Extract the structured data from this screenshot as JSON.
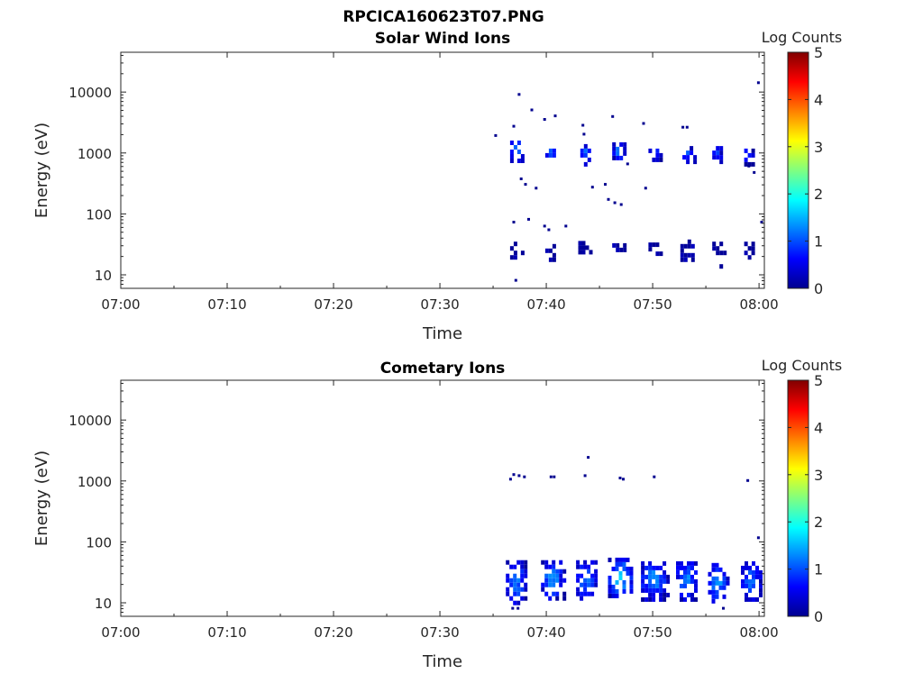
{
  "figure_title": "RPCICA160623T07.PNG",
  "colormap": [
    "#00008f",
    "#0000ff",
    "#0080ff",
    "#00ffff",
    "#80ff80",
    "#ffff00",
    "#ff8000",
    "#ff0000",
    "#800000"
  ],
  "chart_data": [
    {
      "type": "heatmap",
      "title": "Solar Wind Ions",
      "xlabel": "Time",
      "ylabel": "Energy (eV)",
      "xlim_minutes": [
        0,
        60.5
      ],
      "ylim": [
        6,
        45000
      ],
      "yscale": "log",
      "xticks": [
        {
          "m": 0,
          "label": "07:00"
        },
        {
          "m": 10,
          "label": "07:10"
        },
        {
          "m": 20,
          "label": "07:20"
        },
        {
          "m": 30,
          "label": "07:30"
        },
        {
          "m": 40,
          "label": "07:40"
        },
        {
          "m": 50,
          "label": "07:50"
        },
        {
          "m": 60,
          "label": "08:00"
        }
      ],
      "yticks": [
        {
          "v": 10,
          "label": "10"
        },
        {
          "v": 100,
          "label": "100"
        },
        {
          "v": 1000,
          "label": "1000"
        },
        {
          "v": 10000,
          "label": "10000"
        }
      ],
      "colorbar": {
        "label": "Log Counts",
        "min": 0,
        "max": 5,
        "ticks": [
          "0",
          "1",
          "2",
          "3",
          "4",
          "5"
        ]
      },
      "blobs": [
        {
          "t0": 36.6,
          "t1": 37.9,
          "e0": 700,
          "e1": 1600,
          "val": 1.5
        },
        {
          "t0": 39.9,
          "t1": 40.9,
          "e0": 750,
          "e1": 1400,
          "val": 1.3
        },
        {
          "t0": 43.2,
          "t1": 44.2,
          "e0": 700,
          "e1": 1400,
          "val": 1.2
        },
        {
          "t0": 46.2,
          "t1": 47.5,
          "e0": 750,
          "e1": 1500,
          "val": 1.3
        },
        {
          "t0": 49.6,
          "t1": 50.7,
          "e0": 750,
          "e1": 1400,
          "val": 1.2
        },
        {
          "t0": 52.8,
          "t1": 54.0,
          "e0": 700,
          "e1": 1300,
          "val": 1.0
        },
        {
          "t0": 55.6,
          "t1": 56.6,
          "e0": 700,
          "e1": 1300,
          "val": 0.9
        },
        {
          "t0": 58.6,
          "t1": 59.4,
          "e0": 700,
          "e1": 1400,
          "val": 1.1
        },
        {
          "t0": 36.6,
          "t1": 37.7,
          "e0": 19,
          "e1": 35,
          "val": 0.1
        },
        {
          "t0": 39.9,
          "t1": 40.7,
          "e0": 19,
          "e1": 32,
          "val": 0.1
        },
        {
          "t0": 43.0,
          "t1": 44.2,
          "e0": 22,
          "e1": 36,
          "val": 0.1
        },
        {
          "t0": 46.2,
          "t1": 47.4,
          "e0": 20,
          "e1": 33,
          "val": 0.1
        },
        {
          "t0": 49.6,
          "t1": 50.9,
          "e0": 20,
          "e1": 34,
          "val": 0.1
        },
        {
          "t0": 52.6,
          "t1": 53.9,
          "e0": 19,
          "e1": 38,
          "val": 0.1
        },
        {
          "t0": 55.6,
          "t1": 56.7,
          "e0": 14,
          "e1": 35,
          "val": 0.1
        },
        {
          "t0": 58.6,
          "t1": 59.6,
          "e0": 19,
          "e1": 35,
          "val": 0.1
        }
      ],
      "dots": [
        [
          37.4,
          9000
        ],
        [
          38.6,
          5000
        ],
        [
          39.8,
          3500
        ],
        [
          40.8,
          4000
        ],
        [
          43.4,
          2800
        ],
        [
          43.5,
          2000
        ],
        [
          46.2,
          3900
        ],
        [
          49.1,
          3000
        ],
        [
          52.8,
          2600
        ],
        [
          53.2,
          2600
        ],
        [
          35.2,
          1900
        ],
        [
          36.9,
          2700
        ],
        [
          59.9,
          14000
        ],
        [
          38.0,
          300
        ],
        [
          39.0,
          260
        ],
        [
          37.6,
          370
        ],
        [
          44.3,
          270
        ],
        [
          45.5,
          300
        ],
        [
          49.3,
          260
        ],
        [
          45.8,
          170
        ],
        [
          46.4,
          150
        ],
        [
          47.0,
          140
        ],
        [
          38.3,
          80
        ],
        [
          36.9,
          72
        ],
        [
          39.8,
          62
        ],
        [
          40.2,
          54
        ],
        [
          41.8,
          62
        ],
        [
          60.2,
          72
        ],
        [
          59.5,
          470
        ],
        [
          59.0,
          600
        ],
        [
          37.1,
          8
        ],
        [
          47.6,
          650
        ]
      ]
    },
    {
      "type": "heatmap",
      "title": "Cometary Ions",
      "xlabel": "Time",
      "ylabel": "Energy (eV)",
      "xlim_minutes": [
        0,
        60.5
      ],
      "ylim": [
        6,
        45000
      ],
      "yscale": "log",
      "xticks": [
        {
          "m": 0,
          "label": "07:00"
        },
        {
          "m": 10,
          "label": "07:10"
        },
        {
          "m": 20,
          "label": "07:20"
        },
        {
          "m": 30,
          "label": "07:30"
        },
        {
          "m": 40,
          "label": "07:40"
        },
        {
          "m": 50,
          "label": "07:50"
        },
        {
          "m": 60,
          "label": "08:00"
        }
      ],
      "yticks": [
        {
          "v": 10,
          "label": "10"
        },
        {
          "v": 100,
          "label": "100"
        },
        {
          "v": 1000,
          "label": "1000"
        },
        {
          "v": 10000,
          "label": "10000"
        }
      ],
      "colorbar": {
        "label": "Log Counts",
        "min": 0,
        "max": 5,
        "ticks": [
          "0",
          "1",
          "2",
          "3",
          "4",
          "5"
        ]
      },
      "blobs": [
        {
          "t0": 36.2,
          "t1": 38.1,
          "e0": 10,
          "e1": 50,
          "val": 1.4
        },
        {
          "t0": 39.5,
          "t1": 41.6,
          "e0": 12,
          "e1": 50,
          "val": 1.5
        },
        {
          "t0": 42.8,
          "t1": 44.8,
          "e0": 12,
          "e1": 50,
          "val": 1.4
        },
        {
          "t0": 45.8,
          "t1": 48.1,
          "e0": 12,
          "e1": 55,
          "val": 1.8
        },
        {
          "t0": 48.9,
          "t1": 51.3,
          "e0": 12,
          "e1": 48,
          "val": 1.6
        },
        {
          "t0": 52.2,
          "t1": 54.2,
          "e0": 12,
          "e1": 48,
          "val": 1.4
        },
        {
          "t0": 55.2,
          "t1": 57.0,
          "e0": 11,
          "e1": 45,
          "val": 1.5
        },
        {
          "t0": 58.3,
          "t1": 60.1,
          "e0": 12,
          "e1": 48,
          "val": 1.3
        }
      ],
      "dots": [
        [
          36.9,
          1250
        ],
        [
          37.4,
          1200
        ],
        [
          37.9,
          1150
        ],
        [
          40.4,
          1150
        ],
        [
          40.7,
          1150
        ],
        [
          43.6,
          1200
        ],
        [
          46.9,
          1100
        ],
        [
          47.2,
          1050
        ],
        [
          50.1,
          1150
        ],
        [
          58.9,
          1000
        ],
        [
          43.9,
          2400
        ],
        [
          59.9,
          115
        ],
        [
          36.8,
          8
        ],
        [
          37.3,
          8
        ],
        [
          56.6,
          8
        ],
        [
          36.6,
          1050
        ]
      ]
    }
  ]
}
